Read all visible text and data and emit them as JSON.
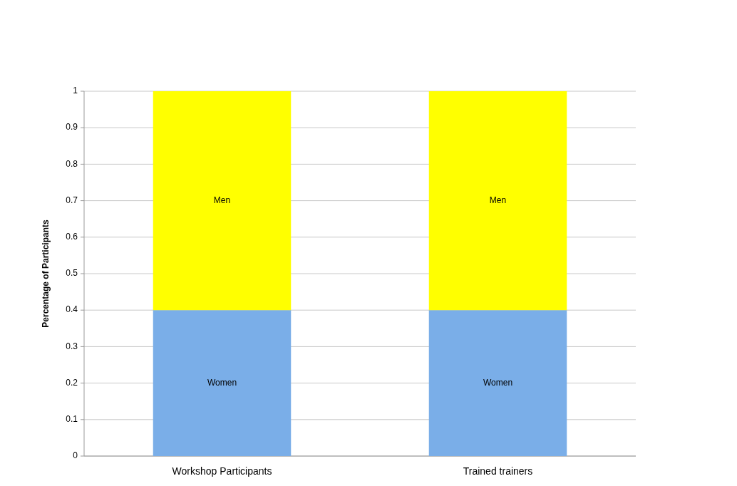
{
  "chart_data": {
    "type": "bar",
    "stacked": true,
    "ylabel": "Percentage of Participants",
    "categories": [
      "Workshop Participants",
      "Trained trainers"
    ],
    "series": [
      {
        "name": "Women",
        "color": "#7aaee8",
        "values": [
          0.4,
          0.4
        ]
      },
      {
        "name": "Men",
        "color": "#ffff00",
        "values": [
          0.6,
          0.6
        ]
      }
    ],
    "ylim": [
      0,
      1
    ],
    "yticks": [
      0,
      {
        "value": 0.1,
        "label": "0.1"
      },
      {
        "value": 0.2,
        "label": "0.2"
      },
      {
        "value": 0.3,
        "label": "0.3"
      },
      {
        "value": 0.4,
        "label": "0.4"
      },
      {
        "value": 0.5,
        "label": "0.5"
      },
      {
        "value": 0.6,
        "label": "0.6"
      },
      {
        "value": 0.7,
        "label": "0.7"
      },
      {
        "value": 0.8,
        "label": "0.8"
      },
      {
        "value": 0.9,
        "label": "0.9"
      },
      1
    ],
    "grid": "y",
    "legend": false
  }
}
